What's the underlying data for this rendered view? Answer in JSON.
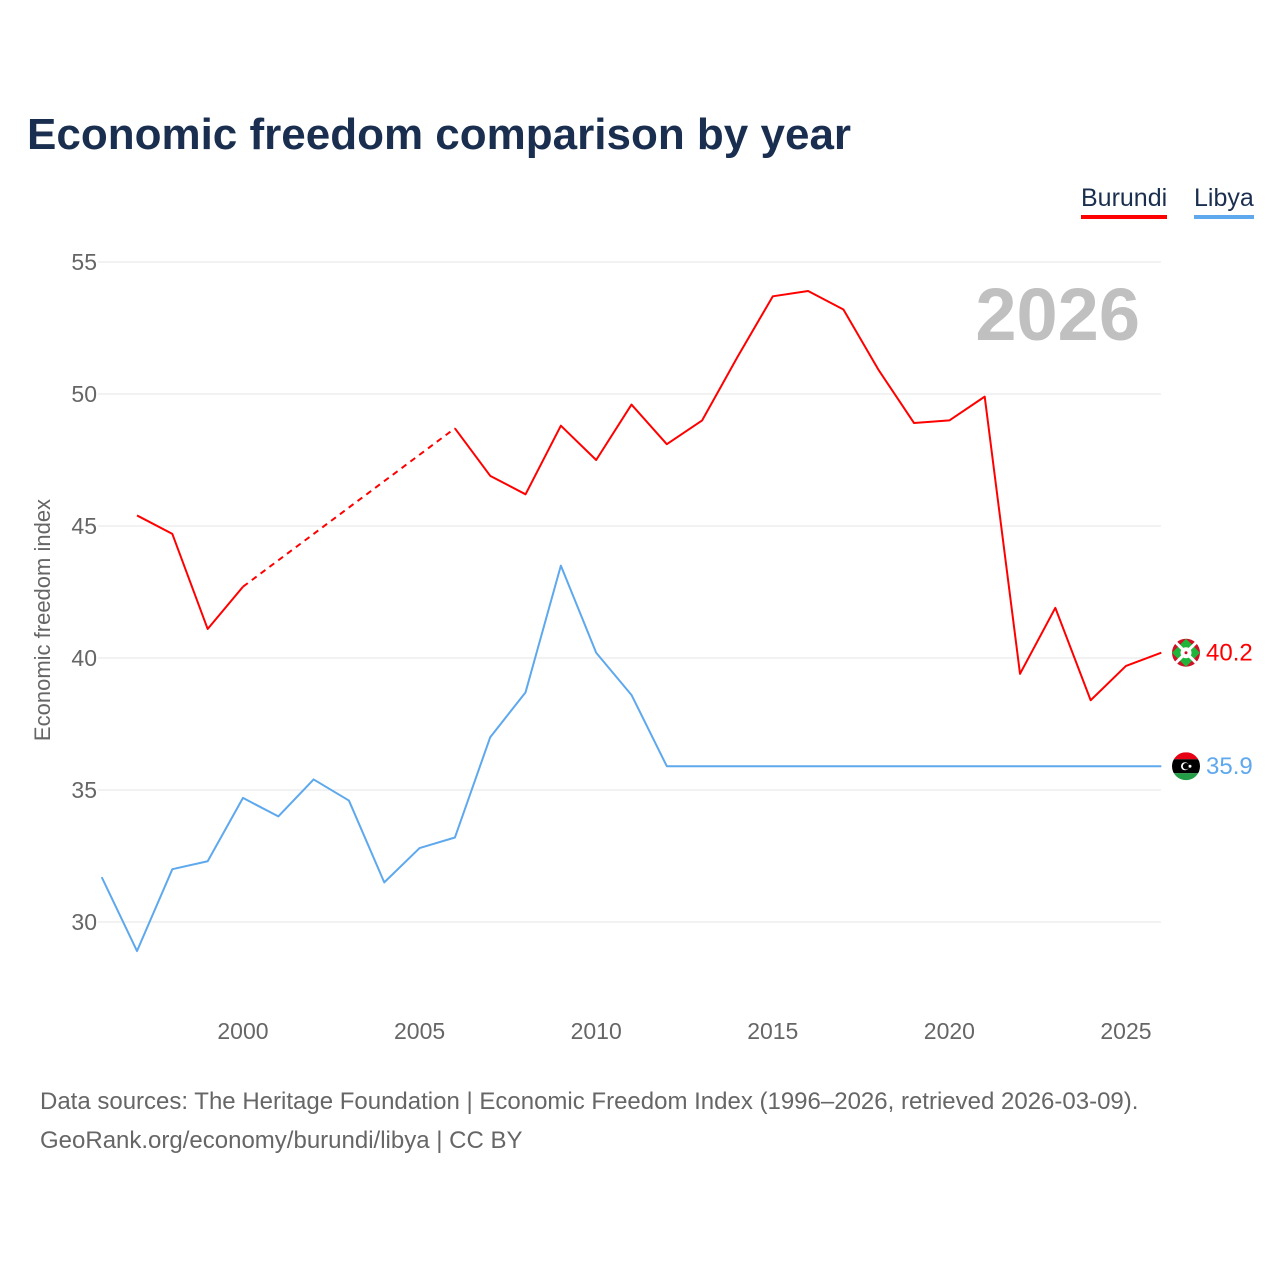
{
  "chart_data": {
    "type": "line",
    "title": "Economic freedom comparison by year",
    "ylabel": "Economic freedom index",
    "xlabel": "",
    "ylim": [
      27,
      56
    ],
    "xlim": [
      1996,
      2026
    ],
    "yticks": [
      30,
      35,
      40,
      45,
      50,
      55
    ],
    "xticks": [
      2000,
      2005,
      2010,
      2015,
      2020,
      2025
    ],
    "grid": true,
    "legend_position": "top-right",
    "watermark_year": "2026",
    "series": [
      {
        "name": "Burundi",
        "color": "#ff0000",
        "end_label": "40.2",
        "flag": "burundi-flag",
        "x": [
          1997,
          1998,
          1999,
          2000,
          2006,
          2007,
          2008,
          2009,
          2010,
          2011,
          2012,
          2013,
          2014,
          2015,
          2016,
          2017,
          2018,
          2019,
          2020,
          2021,
          2022,
          2023,
          2024,
          2025,
          2026
        ],
        "values": [
          45.4,
          44.7,
          41.1,
          42.7,
          48.7,
          46.9,
          46.2,
          48.8,
          47.5,
          49.6,
          48.1,
          49.0,
          51.4,
          53.7,
          53.9,
          53.2,
          50.9,
          48.9,
          49.0,
          49.9,
          39.4,
          41.9,
          38.4,
          39.7,
          40.2
        ],
        "gap_dashed": [
          [
            2000,
            2006
          ]
        ]
      },
      {
        "name": "Libya",
        "color": "#5ea8ee",
        "end_label": "35.9",
        "flag": "libya-flag",
        "x": [
          1996,
          1997,
          1998,
          1999,
          2000,
          2001,
          2002,
          2003,
          2004,
          2005,
          2006,
          2007,
          2008,
          2009,
          2010,
          2011,
          2012,
          2013,
          2014,
          2015,
          2016,
          2017,
          2018,
          2019,
          2020,
          2021,
          2022,
          2023,
          2024,
          2025,
          2026
        ],
        "values": [
          31.7,
          28.9,
          32.0,
          32.3,
          34.7,
          34.0,
          35.4,
          34.6,
          31.5,
          32.8,
          33.2,
          37.0,
          38.7,
          43.5,
          40.2,
          38.6,
          35.9,
          35.9,
          35.9,
          35.9,
          35.9,
          35.9,
          35.9,
          35.9,
          35.9,
          35.9,
          35.9,
          35.9,
          35.9,
          35.9,
          35.9
        ],
        "gap_dashed": []
      }
    ]
  },
  "footer": {
    "line1": "Data sources: The Heritage Foundation | Economic Freedom Index (1996–2026, retrieved 2026-03-09).",
    "line2": "GeoRank.org/economy/burundi/libya | CC BY"
  }
}
